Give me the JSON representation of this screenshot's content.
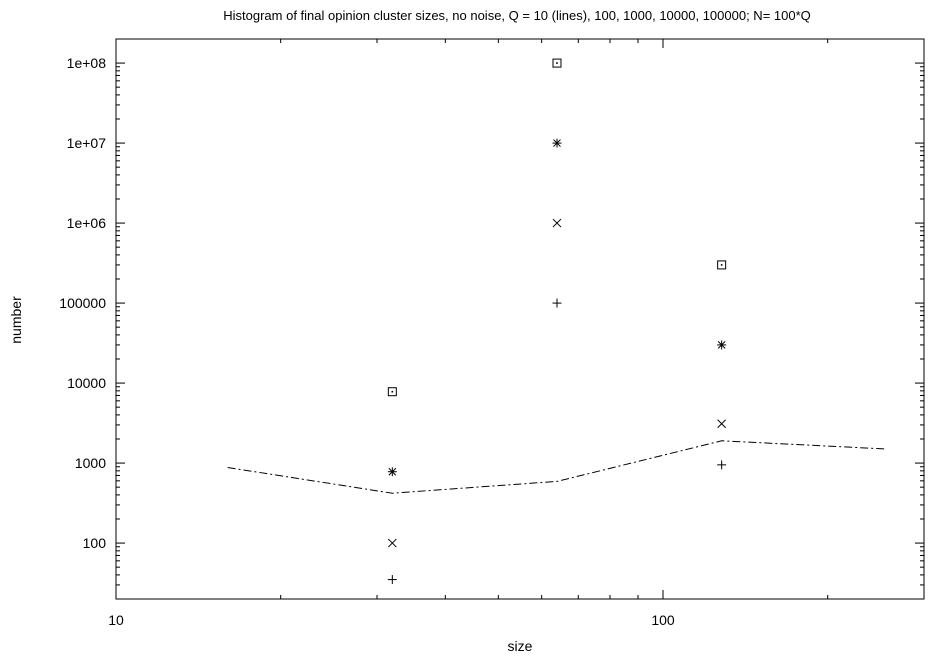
{
  "chart_data": {
    "type": "scatter",
    "title": "Histogram of final opinion cluster sizes, no noise, Q = 10 (lines), 100, 1000, 10000, 100000; N= 100*Q",
    "xlabel": "size",
    "ylabel": "number",
    "x_scale": "log",
    "y_scale": "log",
    "xlim": [
      10,
      300
    ],
    "ylim": [
      20,
      200000000
    ],
    "x_ticks": [
      {
        "value": 10,
        "label": "10"
      },
      {
        "value": 100,
        "label": "100"
      }
    ],
    "y_ticks": [
      {
        "value": 100,
        "label": "100"
      },
      {
        "value": 1000,
        "label": "1000"
      },
      {
        "value": 10000,
        "label": "10000"
      },
      {
        "value": 100000,
        "label": "100000"
      },
      {
        "value": 1000000,
        "label": "1e+06"
      },
      {
        "value": 10000000,
        "label": "1e+07"
      },
      {
        "value": 100000000,
        "label": "1e+08"
      }
    ],
    "grid": false,
    "legend": "none",
    "series": [
      {
        "style": "dash-dot-line",
        "x": [
          16,
          32,
          64,
          128,
          256
        ],
        "y": [
          880,
          420,
          590,
          1900,
          1500
        ]
      },
      {
        "style": "plus",
        "x": [
          32,
          64,
          128
        ],
        "y": [
          35,
          100000,
          950
        ]
      },
      {
        "style": "cross",
        "x": [
          32,
          64,
          128
        ],
        "y": [
          100,
          1000000,
          3100
        ]
      },
      {
        "style": "star",
        "x": [
          32,
          64,
          128
        ],
        "y": [
          780,
          10000000,
          30000
        ]
      },
      {
        "style": "dotted-square",
        "x": [
          32,
          64,
          128
        ],
        "y": [
          7800,
          100000000,
          300000
        ]
      }
    ]
  }
}
